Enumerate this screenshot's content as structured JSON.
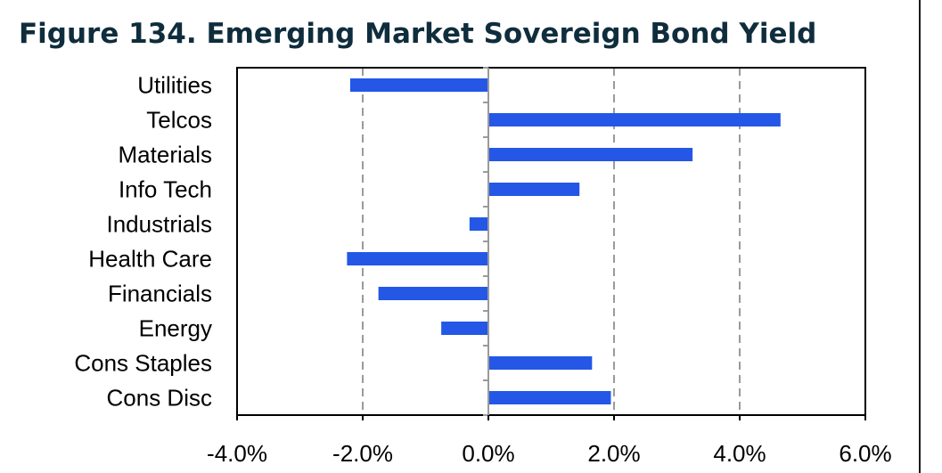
{
  "title": "Figure 134. Emerging Market Sovereign Bond Yield",
  "chart_data": {
    "type": "bar",
    "orientation": "horizontal",
    "categories": [
      "Utilities",
      "Telcos",
      "Materials",
      "Info Tech",
      "Industrials",
      "Health Care",
      "Financials",
      "Energy",
      "Cons Staples",
      "Cons Disc"
    ],
    "values": [
      -2.2,
      4.65,
      3.25,
      1.45,
      -0.3,
      -2.25,
      -1.75,
      -0.75,
      1.65,
      1.95
    ],
    "xlim": [
      -4.0,
      6.0
    ],
    "x_ticks": [
      -4.0,
      -2.0,
      0.0,
      2.0,
      4.0,
      6.0
    ],
    "x_tick_labels": [
      "-4.0%",
      "-2.0%",
      "0.0%",
      "2.0%",
      "4.0%",
      "6.0%"
    ],
    "gridlines": "vertical dashed",
    "bar_color": "#2457e6",
    "xlabel": "",
    "ylabel": ""
  }
}
